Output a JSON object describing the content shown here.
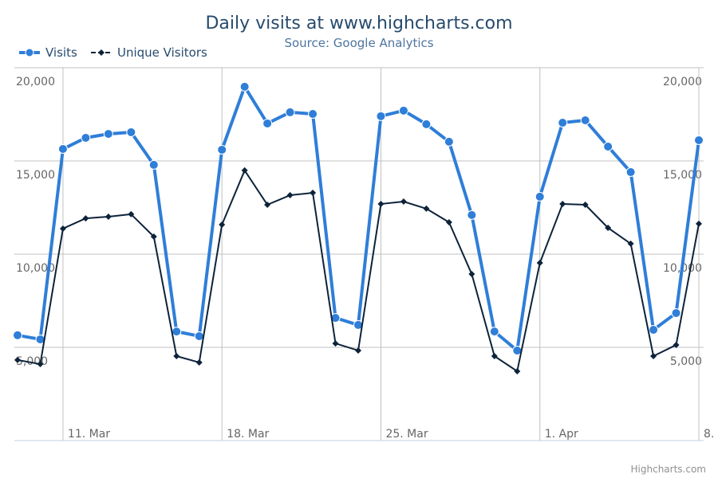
{
  "chart_data": {
    "type": "line",
    "title": "Daily visits at www.highcharts.com",
    "subtitle": "Source: Google Analytics",
    "credits": "Highcharts.com",
    "categories": [
      null,
      null,
      "11. Mar",
      null,
      null,
      null,
      null,
      null,
      null,
      "18. Mar",
      null,
      null,
      null,
      null,
      null,
      null,
      "25. Mar",
      null,
      null,
      null,
      null,
      null,
      null,
      "1. Apr",
      null,
      null,
      null,
      null,
      null,
      null,
      "8."
    ],
    "series": [
      {
        "name": "Visits",
        "color": "#2f7ed8",
        "values": [
          5650,
          5430,
          15640,
          16240,
          16450,
          16540,
          14790,
          5850,
          5600,
          15600,
          18980,
          17010,
          17610,
          17520,
          6580,
          6200,
          17400,
          17700,
          16970,
          16030,
          12100,
          5850,
          4830,
          13080,
          17050,
          17180,
          15770,
          14400,
          5940,
          6840,
          16110
        ]
      },
      {
        "name": "Unique Visitors",
        "color": "#0d233a",
        "values": [
          4320,
          4100,
          11370,
          11920,
          12010,
          12140,
          10940,
          4530,
          4190,
          11580,
          14490,
          12650,
          13160,
          13290,
          5210,
          4830,
          12690,
          12820,
          12440,
          11710,
          8930,
          4530,
          3720,
          9530,
          12690,
          12650,
          11410,
          10560,
          4530,
          5130,
          11630
        ]
      }
    ],
    "ylim": [
      0,
      20000
    ],
    "yticks": [
      {
        "value": 5000,
        "label": "5,000"
      },
      {
        "value": 10000,
        "label": "10,000"
      },
      {
        "value": 15000,
        "label": "15,000"
      },
      {
        "value": 20000,
        "label": "20,000"
      }
    ],
    "grid": true
  }
}
